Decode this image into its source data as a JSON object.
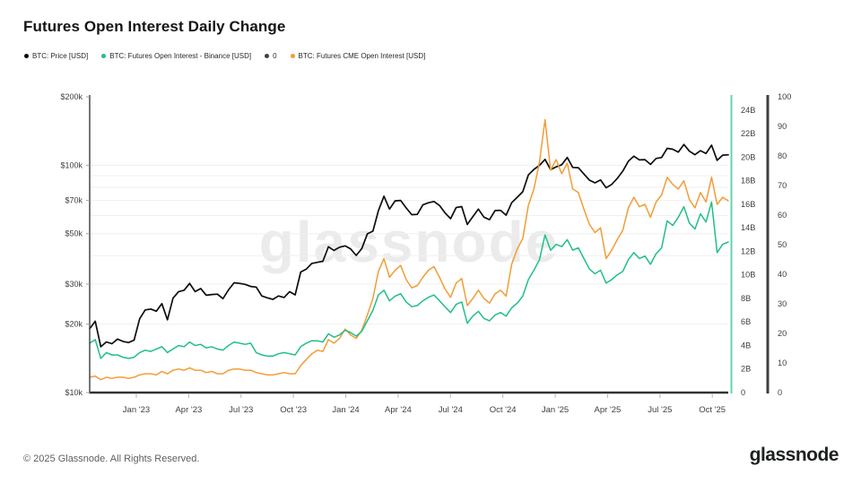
{
  "header": {
    "title": "Futures Open Interest Daily Change"
  },
  "legend": {
    "items": [
      {
        "label": "BTC: Price [USD]",
        "color": "#0d0d0d"
      },
      {
        "label": "BTC: Futures Open Interest - Binance [USD]",
        "color": "#1fbf8a"
      },
      {
        "label": "0",
        "color": "#3c4043"
      },
      {
        "label": "BTC: Futures CME Open Interest [USD]",
        "color": "#f19d38"
      }
    ]
  },
  "footer": {
    "copyright": "© 2025 Glassnode. All Rights Reserved.",
    "logo_text": "glassnode"
  },
  "chart_data": {
    "type": "line",
    "watermark": "glassnode",
    "colors": {
      "price": "#0d0d0d",
      "binance": "#1fbf8a",
      "cme": "#f19d38",
      "zero_line": "#2f3337",
      "teal_axis": "#62d3b4",
      "dark_axis": "#3c4043",
      "grid": "#efefef"
    },
    "x_ticks": [
      {
        "label": "Jan '23",
        "f": 0.073
      },
      {
        "label": "Apr '23",
        "f": 0.155
      },
      {
        "label": "Jul '23",
        "f": 0.237
      },
      {
        "label": "Oct '23",
        "f": 0.319
      },
      {
        "label": "Jan '24",
        "f": 0.401
      },
      {
        "label": "Apr '24",
        "f": 0.483
      },
      {
        "label": "Jul '24",
        "f": 0.565
      },
      {
        "label": "Oct '24",
        "f": 0.647
      },
      {
        "label": "Jan '25",
        "f": 0.729
      },
      {
        "label": "Apr '25",
        "f": 0.811
      },
      {
        "label": "Jul '25",
        "f": 0.893
      },
      {
        "label": "Oct '25",
        "f": 0.975
      }
    ],
    "y_left": {
      "scale": "log",
      "unit": "USD",
      "domain_k": [
        10,
        200
      ],
      "ticks": [
        {
          "label": "$200k",
          "v": 200
        },
        {
          "label": "$100k",
          "v": 100
        },
        {
          "label": "$70k",
          "v": 70
        },
        {
          "label": "$50k",
          "v": 50
        },
        {
          "label": "$30k",
          "v": 30
        },
        {
          "label": "$20k",
          "v": 20
        },
        {
          "label": "$10k",
          "v": 10
        }
      ],
      "minor_grid_values_k": [
        20,
        30,
        40,
        50,
        60,
        70,
        80,
        90,
        100
      ]
    },
    "y_right_b": {
      "scale": "linear",
      "unit": "USD billions",
      "domain": [
        0,
        25.14
      ],
      "ticks": [
        {
          "label": "24B",
          "v": 24
        },
        {
          "label": "22B",
          "v": 22
        },
        {
          "label": "20B",
          "v": 20
        },
        {
          "label": "18B",
          "v": 18
        },
        {
          "label": "16B",
          "v": 16
        },
        {
          "label": "14B",
          "v": 14
        },
        {
          "label": "12B",
          "v": 12
        },
        {
          "label": "10B",
          "v": 10
        },
        {
          "label": "8B",
          "v": 8
        },
        {
          "label": "6B",
          "v": 6
        },
        {
          "label": "4B",
          "v": 4
        },
        {
          "label": "2B",
          "v": 2
        },
        {
          "label": "0",
          "v": 0
        }
      ]
    },
    "y_right_pct": {
      "scale": "linear",
      "domain": [
        0,
        100
      ],
      "ticks": [
        {
          "label": "100",
          "v": 100
        },
        {
          "label": "90",
          "v": 90
        },
        {
          "label": "80",
          "v": 80
        },
        {
          "label": "70",
          "v": 70
        },
        {
          "label": "60",
          "v": 60
        },
        {
          "label": "50",
          "v": 50
        },
        {
          "label": "40",
          "v": 40
        },
        {
          "label": "30",
          "v": 30
        },
        {
          "label": "20",
          "v": 20
        },
        {
          "label": "10",
          "v": 10
        },
        {
          "label": "0",
          "v": 0
        }
      ]
    },
    "series": [
      {
        "name": "BTC: Price [USD]",
        "axis": "left",
        "color": "#0d0d0d",
        "unit": "USD thousands",
        "width": 1.7,
        "values": [
          19.1,
          20.6,
          15.9,
          16.7,
          16.4,
          17.2,
          16.8,
          16.6,
          17.0,
          21.1,
          23.1,
          23.3,
          22.8,
          24.6,
          20.9,
          26.0,
          27.8,
          28.2,
          30.2,
          27.8,
          28.7,
          26.8,
          27.0,
          27.1,
          25.9,
          28.3,
          30.4,
          30.2,
          29.9,
          29.3,
          29.1,
          26.6,
          26.1,
          25.7,
          26.6,
          26.2,
          27.8,
          26.9,
          33.9,
          34.9,
          37.0,
          37.4,
          37.8,
          43.8,
          42.2,
          43.6,
          44.2,
          42.8,
          40.1,
          43.0,
          49.9,
          51.3,
          63.1,
          73.1,
          64.1,
          69.7,
          70.0,
          64.9,
          60.6,
          60.8,
          66.9,
          68.4,
          69.3,
          66.5,
          61.7,
          58.2,
          65.1,
          65.8,
          54.9,
          59.4,
          64.1,
          59.1,
          57.6,
          63.2,
          63.3,
          60.3,
          68.4,
          72.3,
          76.5,
          90.6,
          95.9,
          99.9,
          106.1,
          95.7,
          98.3,
          100.5,
          108.2,
          97.8,
          97.5,
          91.5,
          86.0,
          83.7,
          86.1,
          79.6,
          82.3,
          87.5,
          94.2,
          104.1,
          109.7,
          105.6,
          105.8,
          100.9,
          107.1,
          108.2,
          118.7,
          117.6,
          114.2,
          123.4,
          115.3,
          111.3,
          115.9,
          112.7,
          122.5,
          105.1,
          110.8,
          111.2
        ]
      },
      {
        "name": "BTC: Futures CME Open Interest [USD]",
        "axis": "right_b",
        "color": "#f19d38",
        "unit": "USD billions",
        "width": 1.5,
        "values": [
          1.3,
          1.4,
          1.1,
          1.3,
          1.2,
          1.3,
          1.3,
          1.2,
          1.3,
          1.5,
          1.6,
          1.6,
          1.5,
          1.8,
          1.6,
          1.9,
          2.0,
          1.9,
          2.1,
          1.9,
          1.9,
          1.7,
          1.8,
          1.6,
          1.6,
          1.9,
          2.0,
          2.0,
          1.9,
          1.9,
          1.7,
          1.6,
          1.5,
          1.5,
          1.6,
          1.7,
          1.6,
          1.6,
          2.3,
          2.8,
          3.3,
          3.6,
          3.5,
          4.5,
          4.2,
          4.6,
          5.4,
          4.9,
          4.6,
          5.3,
          6.6,
          8.0,
          10.3,
          11.4,
          9.8,
          10.4,
          10.8,
          9.6,
          8.9,
          9.1,
          9.8,
          10.4,
          10.7,
          9.8,
          8.8,
          8.1,
          9.3,
          9.7,
          7.4,
          8.0,
          8.7,
          8.0,
          7.6,
          8.4,
          8.7,
          8.2,
          10.9,
          12.2,
          13.1,
          15.9,
          17.3,
          19.6,
          23.2,
          18.9,
          19.8,
          18.6,
          19.5,
          17.3,
          17.0,
          15.6,
          14.3,
          13.6,
          14.0,
          11.4,
          12.1,
          13.0,
          13.8,
          15.7,
          16.6,
          15.8,
          16.0,
          14.9,
          16.2,
          16.8,
          18.3,
          17.7,
          17.3,
          18.0,
          16.4,
          15.7,
          17.0,
          16.2,
          18.3,
          16.0,
          16.6,
          16.3
        ]
      },
      {
        "name": "BTC: Futures Open Interest - Binance [USD]",
        "axis": "right_b",
        "color": "#1fbf8a",
        "unit": "USD billions",
        "width": 1.5,
        "values": [
          4.2,
          4.5,
          2.9,
          3.4,
          3.2,
          3.2,
          3.0,
          2.9,
          3.0,
          3.4,
          3.6,
          3.5,
          3.7,
          3.9,
          3.4,
          3.7,
          4.0,
          3.9,
          4.3,
          4.0,
          4.1,
          3.8,
          3.9,
          3.7,
          3.6,
          4.0,
          4.3,
          4.2,
          4.1,
          4.2,
          3.4,
          3.2,
          3.1,
          3.1,
          3.3,
          3.4,
          3.3,
          3.2,
          3.9,
          4.2,
          4.4,
          4.4,
          4.3,
          5.0,
          4.7,
          4.9,
          5.3,
          5.1,
          4.8,
          5.2,
          6.1,
          7.0,
          8.3,
          8.7,
          7.8,
          8.2,
          8.4,
          7.7,
          7.3,
          7.4,
          7.8,
          8.1,
          8.3,
          7.8,
          7.3,
          6.8,
          7.5,
          7.7,
          5.9,
          6.5,
          6.9,
          6.3,
          6.1,
          6.6,
          6.8,
          6.5,
          7.2,
          7.6,
          8.2,
          9.6,
          10.4,
          11.3,
          13.4,
          12.1,
          12.6,
          12.4,
          13.0,
          12.1,
          12.3,
          11.4,
          10.5,
          10.1,
          10.4,
          9.3,
          9.6,
          10.0,
          10.3,
          11.3,
          11.9,
          11.4,
          11.6,
          10.9,
          11.8,
          12.3,
          14.6,
          14.2,
          14.9,
          15.8,
          14.4,
          13.9,
          15.2,
          14.5,
          16.2,
          11.9,
          12.6,
          12.8
        ]
      },
      {
        "name": "0",
        "axis": "right_pct",
        "color": "#2f3337",
        "width": 2.5,
        "constant": 0
      }
    ]
  }
}
